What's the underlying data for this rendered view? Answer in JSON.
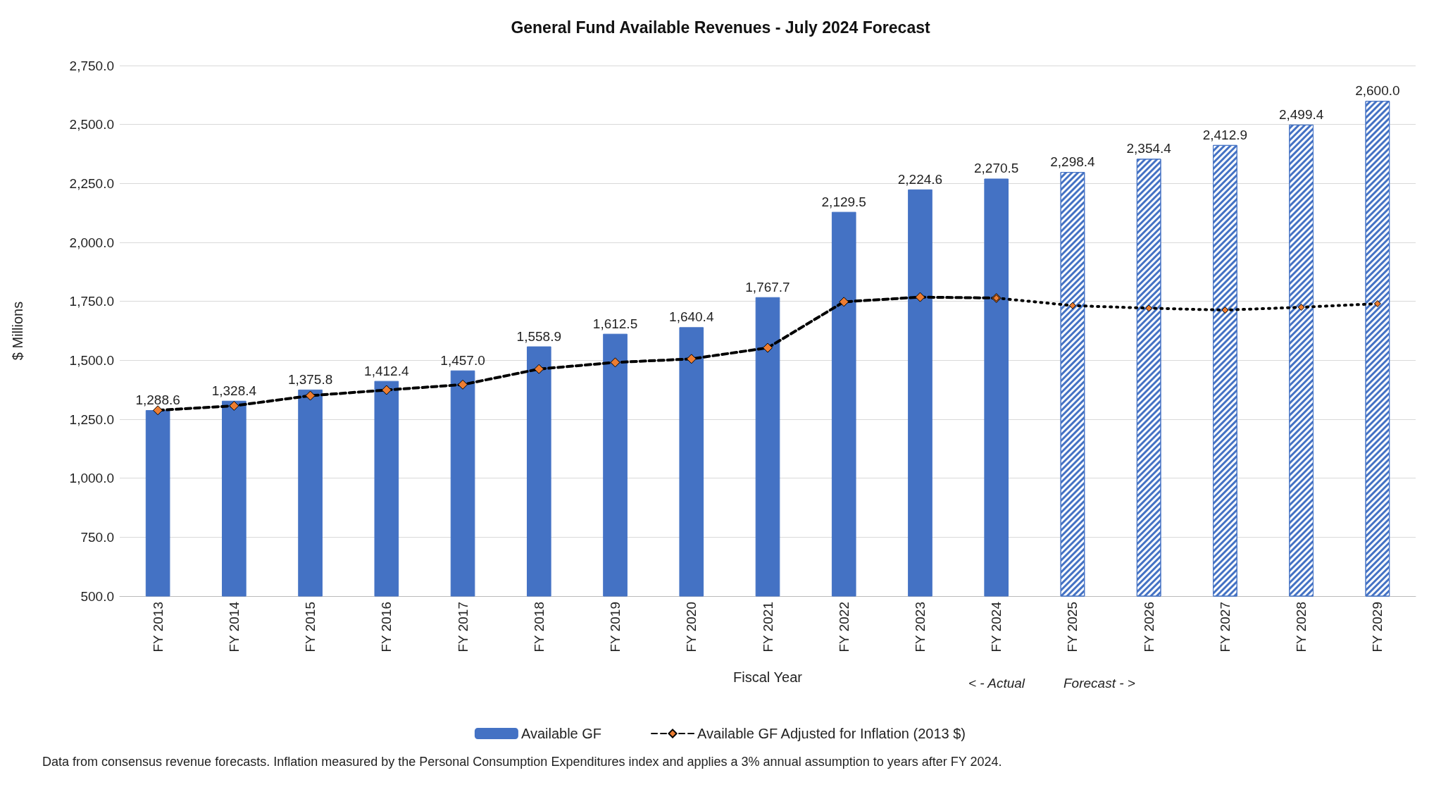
{
  "chart_data": {
    "type": "bar",
    "title": "General Fund Available Revenues - July 2024 Forecast",
    "xlabel": "Fiscal Year",
    "ylabel": "$ Millions",
    "categories": [
      "FY 2013",
      "FY 2014",
      "FY 2015",
      "FY 2016",
      "FY 2017",
      "FY 2018",
      "FY 2019",
      "FY 2020",
      "FY 2021",
      "FY 2022",
      "FY 2023",
      "FY 2024",
      "FY 2025",
      "FY 2026",
      "FY 2027",
      "FY 2028",
      "FY 2029"
    ],
    "series": [
      {
        "name": "Available GF",
        "color": "#4472c4",
        "values": [
          1288.6,
          1328.4,
          1375.8,
          1412.4,
          1457.0,
          1558.9,
          1612.5,
          1640.4,
          1767.7,
          2129.5,
          2224.6,
          2270.5,
          2298.4,
          2354.4,
          2412.9,
          2499.4,
          2600.0
        ],
        "value_labels": [
          "1,288.6",
          "1,328.4",
          "1,375.8",
          "1,412.4",
          "1,457.0",
          "1,558.9",
          "1,612.5",
          "1,640.4",
          "1,767.7",
          "2,129.5",
          "2,224.6",
          "2,270.5",
          "2,298.4",
          "2,354.4",
          "2,412.9",
          "2,499.4",
          "2,600.0"
        ]
      },
      {
        "name": "Available GF Adjusted for Inflation (2013 $)",
        "type": "line",
        "color": "#000000",
        "line_style": "dashed",
        "marker": "diamond",
        "values": [
          1288,
          1307,
          1350,
          1374,
          1397,
          1463,
          1491,
          1506,
          1553,
          1748,
          1768,
          1764,
          null,
          null,
          null,
          null,
          null
        ]
      },
      {
        "type": "line",
        "color": "#000000",
        "line_style": "dotted",
        "marker": "diamond",
        "values": [
          null,
          null,
          null,
          null,
          null,
          null,
          null,
          null,
          null,
          null,
          null,
          1764,
          1732,
          1721,
          1713,
          1725,
          1740
        ]
      }
    ],
    "ylim": [
      500,
      2750
    ],
    "yticks": [
      {
        "value": 500,
        "label": "500.0"
      },
      {
        "value": 750,
        "label": "750.0"
      },
      {
        "value": 1000,
        "label": "1,000.0"
      },
      {
        "value": 1250,
        "label": "1,250.0"
      },
      {
        "value": 1500,
        "label": "1,500.0"
      },
      {
        "value": 1750,
        "label": "1,750.0"
      },
      {
        "value": 2000,
        "label": "2,000.0"
      },
      {
        "value": 2250,
        "label": "2,250.0"
      },
      {
        "value": 2500,
        "label": "2,500.0"
      },
      {
        "value": 2750,
        "label": "2,750.0"
      }
    ],
    "grid": "y",
    "legend": "bottom",
    "annotations": [
      "< - Actual",
      "Forecast - >",
      "Data from consensus revenue forecasts. Inflation measured by the Personal Consumption Expenditures index and applies a 3% annual assumption to years after FY 2024."
    ]
  }
}
